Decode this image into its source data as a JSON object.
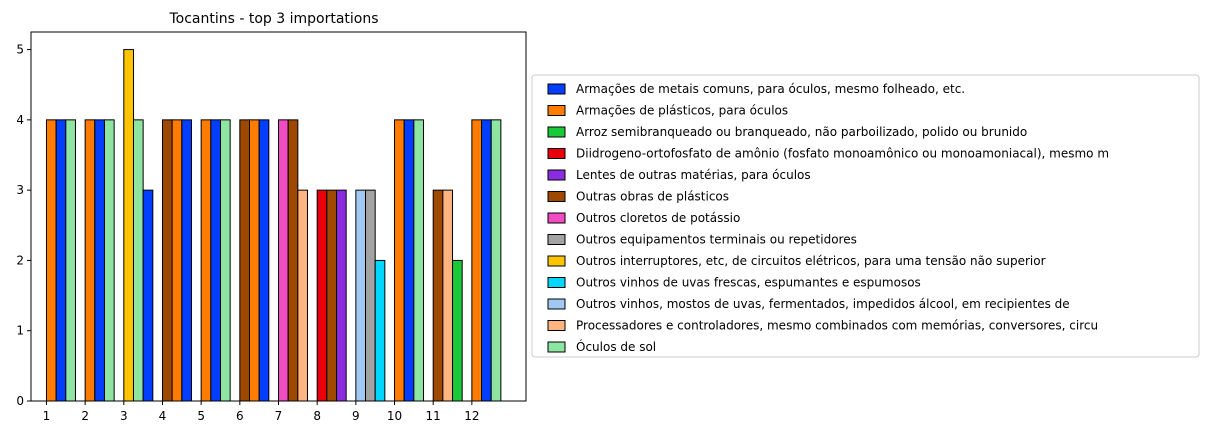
{
  "chart_data": {
    "type": "bar",
    "title": "Tocantins - top 3 importations",
    "xlabel": "",
    "ylabel": "",
    "categories": [
      "1",
      "2",
      "3",
      "4",
      "5",
      "6",
      "7",
      "8",
      "9",
      "10",
      "11",
      "12"
    ],
    "ylim": [
      0,
      5.25
    ],
    "yticks": [
      0,
      1,
      2,
      3,
      4,
      5
    ],
    "grid": false,
    "legend_position": "right",
    "series": [
      {
        "name": "Armações de metais comuns, para óculos, mesmo folheado, etc.",
        "color": "#023eff"
      },
      {
        "name": "Armações de plásticos, para óculos",
        "color": "#ff7c00"
      },
      {
        "name": "Arroz semibranqueado ou branqueado, não parboilizado, polido ou brunido",
        "color": "#1ac938"
      },
      {
        "name": "Diidrogeno-ortofosfato de amônio (fosfato monoamônico ou monoamoniacal), mesmo m",
        "color": "#e8000b"
      },
      {
        "name": "Lentes de outras matérias, para óculos",
        "color": "#8b2be2"
      },
      {
        "name": "Outras obras de plásticos",
        "color": "#9f4800"
      },
      {
        "name": "Outros cloretos de potássio",
        "color": "#f14cc1"
      },
      {
        "name": "Outros equipamentos terminais ou repetidores",
        "color": "#a3a3a3"
      },
      {
        "name": "Outros interruptores, etc, de circuitos elétricos, para uma tensão não superior",
        "color": "#ffc400"
      },
      {
        "name": "Outros vinhos de uvas frescas, espumantes e espumosos",
        "color": "#00d7ff"
      },
      {
        "name": "Outros vinhos, mostos de uvas, fermentados, impedidos álcool, em recipientes de",
        "color": "#a1c9f4"
      },
      {
        "name": "Processadores e controladores, mesmo combinados com memórias, conversores, circu",
        "color": "#ffb482"
      },
      {
        "name": "Óculos de sol",
        "color": "#8de5a1"
      }
    ],
    "groups": [
      {
        "category": "1",
        "bars": [
          {
            "series": 1,
            "value": 4
          },
          {
            "series": 0,
            "value": 4
          },
          {
            "series": 12,
            "value": 4
          }
        ]
      },
      {
        "category": "2",
        "bars": [
          {
            "series": 1,
            "value": 4
          },
          {
            "series": 0,
            "value": 4
          },
          {
            "series": 12,
            "value": 4
          }
        ]
      },
      {
        "category": "3",
        "bars": [
          {
            "series": 8,
            "value": 5
          },
          {
            "series": 12,
            "value": 4
          },
          {
            "series": 0,
            "value": 3
          }
        ]
      },
      {
        "category": "4",
        "bars": [
          {
            "series": 5,
            "value": 4
          },
          {
            "series": 1,
            "value": 4
          },
          {
            "series": 0,
            "value": 4
          }
        ]
      },
      {
        "category": "5",
        "bars": [
          {
            "series": 1,
            "value": 4
          },
          {
            "series": 0,
            "value": 4
          },
          {
            "series": 12,
            "value": 4
          }
        ]
      },
      {
        "category": "6",
        "bars": [
          {
            "series": 5,
            "value": 4
          },
          {
            "series": 1,
            "value": 4
          },
          {
            "series": 0,
            "value": 4
          }
        ]
      },
      {
        "category": "7",
        "bars": [
          {
            "series": 6,
            "value": 4
          },
          {
            "series": 5,
            "value": 4
          },
          {
            "series": 11,
            "value": 3
          }
        ]
      },
      {
        "category": "8",
        "bars": [
          {
            "series": 3,
            "value": 3
          },
          {
            "series": 5,
            "value": 3
          },
          {
            "series": 4,
            "value": 3
          }
        ]
      },
      {
        "category": "9",
        "bars": [
          {
            "series": 10,
            "value": 3
          },
          {
            "series": 7,
            "value": 3
          },
          {
            "series": 9,
            "value": 2
          }
        ]
      },
      {
        "category": "10",
        "bars": [
          {
            "series": 1,
            "value": 4
          },
          {
            "series": 0,
            "value": 4
          },
          {
            "series": 12,
            "value": 4
          }
        ]
      },
      {
        "category": "11",
        "bars": [
          {
            "series": 5,
            "value": 3
          },
          {
            "series": 11,
            "value": 3
          },
          {
            "series": 2,
            "value": 2
          }
        ]
      },
      {
        "category": "12",
        "bars": [
          {
            "series": 1,
            "value": 4
          },
          {
            "series": 0,
            "value": 4
          },
          {
            "series": 12,
            "value": 4
          }
        ]
      }
    ]
  }
}
